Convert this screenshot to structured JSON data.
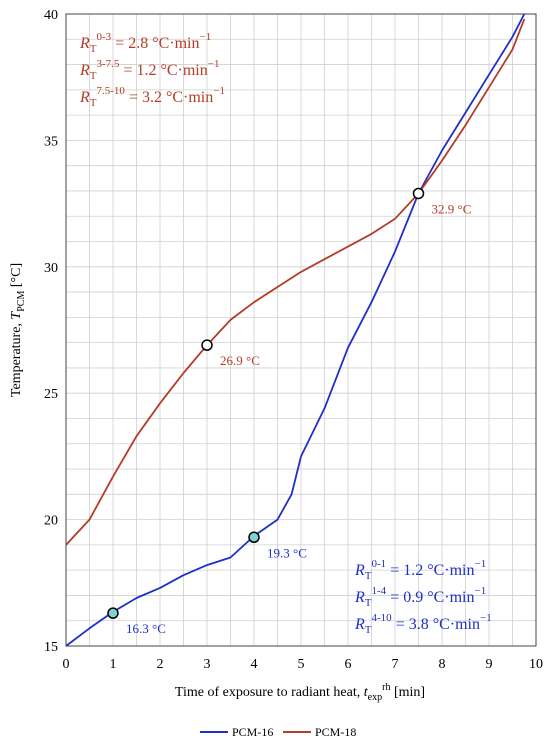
{
  "colors": {
    "pcm16": "#1f2fc8",
    "pcm18": "#b43c28",
    "grid": "#d0d0d0",
    "axis": "#444444",
    "marker16": "#7fd3d3",
    "marker18": "#ffffff"
  },
  "chart_data": {
    "type": "line",
    "xlabel_main": "Time of exposure to radiant heat, ",
    "xlabel_var": "t",
    "xlabel_sub": "exp",
    "xlabel_sup": "rh",
    "xlabel_unit": " [min]",
    "ylabel_main": "Temperature, ",
    "ylabel_var": "T",
    "ylabel_sub": "PCM",
    "ylabel_unit": " [°C]",
    "xlim": [
      0,
      10
    ],
    "ylim": [
      15,
      40
    ],
    "xticks": [
      "0",
      "1",
      "2",
      "3",
      "4",
      "5",
      "6",
      "7",
      "8",
      "9",
      "10"
    ],
    "yticks": [
      "15",
      "20",
      "25",
      "30",
      "35",
      "40"
    ],
    "grid": true,
    "legend_position": "bottom-center",
    "series": [
      {
        "name": "PCM-16",
        "color_key": "pcm16",
        "x": [
          0,
          0.5,
          1,
          1.5,
          2,
          2.5,
          3,
          3.5,
          4,
          4.5,
          4.8,
          5,
          5.5,
          6,
          6.5,
          7,
          7.5,
          8,
          8.5,
          9,
          9.5,
          9.75
        ],
        "y": [
          15.0,
          15.7,
          16.35,
          16.9,
          17.3,
          17.8,
          18.2,
          18.5,
          19.35,
          20.0,
          21.0,
          22.5,
          24.4,
          26.8,
          28.6,
          30.6,
          32.9,
          34.6,
          36.1,
          37.6,
          39.1,
          40.0
        ]
      },
      {
        "name": "PCM-18",
        "color_key": "pcm18",
        "x": [
          0,
          0.5,
          1,
          1.5,
          2,
          2.5,
          3,
          3.5,
          4,
          4.5,
          5,
          5.5,
          6,
          6.5,
          7,
          7.5,
          8,
          8.5,
          9,
          9.5,
          9.75
        ],
        "y": [
          19.0,
          20.0,
          21.7,
          23.3,
          24.6,
          25.8,
          26.9,
          27.9,
          28.6,
          29.2,
          29.8,
          30.3,
          30.8,
          31.3,
          31.9,
          32.9,
          34.2,
          35.6,
          37.1,
          38.6,
          39.8
        ]
      }
    ],
    "markers": [
      {
        "x": 1,
        "y": 16.3,
        "label": "16.3 °C",
        "color_key": "pcm16",
        "fill_key": "marker16"
      },
      {
        "x": 4,
        "y": 19.3,
        "label": "19.3 °C",
        "color_key": "pcm16",
        "fill_key": "marker16"
      },
      {
        "x": 3,
        "y": 26.9,
        "label": "26.9 °C",
        "color_key": "pcm18",
        "fill_key": "marker18"
      },
      {
        "x": 7.5,
        "y": 32.9,
        "label": "32.9 °C",
        "color_key": "pcm18",
        "fill_key": "marker18"
      }
    ],
    "annotations": {
      "pcm18": [
        {
          "sym": "R",
          "sub": "T",
          "sup": "0-3",
          "text": " = 2.8 °C·min",
          "exp": "−1"
        },
        {
          "sym": "R",
          "sub": "T",
          "sup": "3-7.5",
          "text": " = 1.2 °C·min",
          "exp": "−1"
        },
        {
          "sym": "R",
          "sub": "T",
          "sup": "7.5-10",
          "text": " = 3.2 °C·min",
          "exp": "−1"
        }
      ],
      "pcm16": [
        {
          "sym": "R",
          "sub": "T",
          "sup": "0-1",
          "text": " = 1.2 °C·min",
          "exp": "−1"
        },
        {
          "sym": "R",
          "sub": "T",
          "sup": "1-4",
          "text": " = 0.9 °C·min",
          "exp": "−1"
        },
        {
          "sym": "R",
          "sub": "T",
          "sup": "4-10",
          "text": " = 3.8 °C·min",
          "exp": "−1"
        }
      ]
    }
  }
}
